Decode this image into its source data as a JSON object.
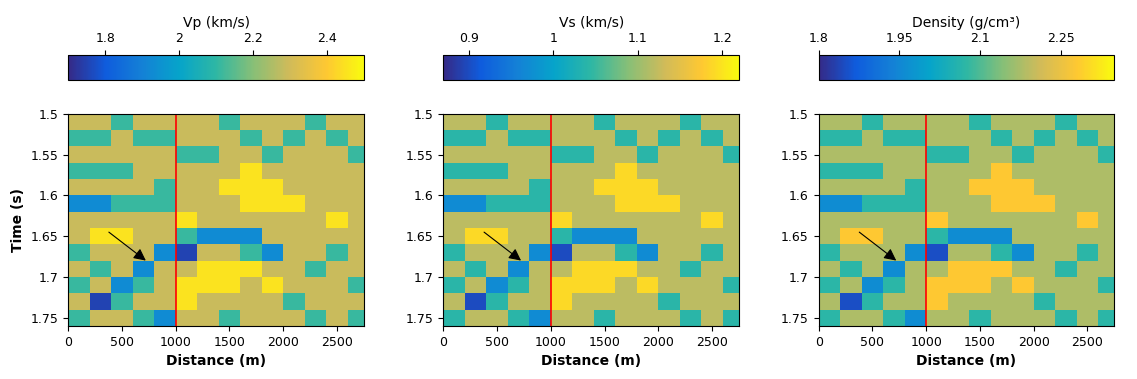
{
  "chart_data": [
    {
      "type": "heatmap",
      "colorbar_label": "Vp (km/s)",
      "xlabel": "Distance (m)",
      "ylabel": "Time (s)",
      "x": [
        100,
        300,
        500,
        700,
        900,
        1100,
        1300,
        1500,
        1700,
        1900,
        2100,
        2300,
        2500,
        2700
      ],
      "y": [
        1.51,
        1.53,
        1.55,
        1.57,
        1.59,
        1.61,
        1.63,
        1.65,
        1.67,
        1.69,
        1.71,
        1.73,
        1.75
      ],
      "xlim": [
        0,
        2750
      ],
      "xticks": [
        0,
        500,
        1000,
        1500,
        2000,
        2500
      ],
      "ylim": [
        1.5,
        1.76
      ],
      "yticks": [
        1.5,
        1.55,
        1.6,
        1.65,
        1.7,
        1.75
      ],
      "well_x": 1000,
      "clim": [
        1.7,
        2.5
      ],
      "cticks": [
        1.8,
        2,
        2.2,
        2.4
      ],
      "cells": [
        [
          2.29,
          2.29,
          2.11,
          2.29,
          2.29,
          2.29,
          2.29,
          2.11,
          2.29,
          2.29,
          2.29,
          2.11,
          2.29,
          2.29
        ],
        [
          2.11,
          2.11,
          2.29,
          2.11,
          2.11,
          2.29,
          2.29,
          2.29,
          2.11,
          2.29,
          2.11,
          2.29,
          2.11,
          2.29
        ],
        [
          2.29,
          2.29,
          2.29,
          2.29,
          2.29,
          2.11,
          2.11,
          2.29,
          2.29,
          2.11,
          2.29,
          2.29,
          2.29,
          2.11
        ],
        [
          2.11,
          2.11,
          2.11,
          2.29,
          2.29,
          2.29,
          2.29,
          2.29,
          2.45,
          2.29,
          2.29,
          2.29,
          2.29,
          2.29
        ],
        [
          2.29,
          2.29,
          2.29,
          2.29,
          2.11,
          2.29,
          2.29,
          2.45,
          2.45,
          2.45,
          2.29,
          2.29,
          2.29,
          2.29
        ],
        [
          1.93,
          1.93,
          2.11,
          2.11,
          2.11,
          2.29,
          2.29,
          2.29,
          2.45,
          2.45,
          2.45,
          2.29,
          2.29,
          2.29
        ],
        [
          2.29,
          2.29,
          2.29,
          2.29,
          2.29,
          2.45,
          2.29,
          2.29,
          2.29,
          2.29,
          2.29,
          2.29,
          2.45,
          2.29
        ],
        [
          2.29,
          2.45,
          2.45,
          2.29,
          2.29,
          2.11,
          1.93,
          1.93,
          1.93,
          2.29,
          2.29,
          2.29,
          2.29,
          2.29
        ],
        [
          2.11,
          2.29,
          2.29,
          2.29,
          1.93,
          1.75,
          2.29,
          2.29,
          2.11,
          1.93,
          2.29,
          2.29,
          2.11,
          2.29
        ],
        [
          2.29,
          2.11,
          2.29,
          1.93,
          2.29,
          2.29,
          2.45,
          2.45,
          2.45,
          2.29,
          2.29,
          2.11,
          2.29,
          2.29
        ],
        [
          2.11,
          2.29,
          1.93,
          2.11,
          2.29,
          2.45,
          2.45,
          2.45,
          2.29,
          2.45,
          2.29,
          2.29,
          2.29,
          2.11
        ],
        [
          2.29,
          1.75,
          2.11,
          2.29,
          2.29,
          2.45,
          2.29,
          2.29,
          2.29,
          2.29,
          2.11,
          2.29,
          2.29,
          2.29
        ],
        [
          2.11,
          2.29,
          2.29,
          2.11,
          1.93,
          2.29,
          2.29,
          2.11,
          2.29,
          2.29,
          2.29,
          2.11,
          2.29,
          2.11
        ]
      ]
    },
    {
      "type": "heatmap",
      "colorbar_label": "Vs (km/s)",
      "xlabel": "Distance (m)",
      "x": [
        100,
        300,
        500,
        700,
        900,
        1100,
        1300,
        1500,
        1700,
        1900,
        2100,
        2300,
        2500,
        2700
      ],
      "y": [
        1.51,
        1.53,
        1.55,
        1.57,
        1.59,
        1.61,
        1.63,
        1.65,
        1.67,
        1.69,
        1.71,
        1.73,
        1.75
      ],
      "xlim": [
        0,
        2750
      ],
      "xticks": [
        0,
        500,
        1000,
        1500,
        2000,
        2500
      ],
      "ylim": [
        1.5,
        1.76
      ],
      "yticks": [
        1.5,
        1.55,
        1.6,
        1.65,
        1.7,
        1.75
      ],
      "well_x": 1000,
      "clim": [
        0.87,
        1.22
      ],
      "cticks": [
        0.9,
        1,
        1.1,
        1.2
      ],
      "cells": [
        [
          1.12,
          1.12,
          1.04,
          1.12,
          1.12,
          1.12,
          1.12,
          1.04,
          1.12,
          1.12,
          1.12,
          1.04,
          1.12,
          1.12
        ],
        [
          1.04,
          1.04,
          1.12,
          1.04,
          1.04,
          1.12,
          1.12,
          1.12,
          1.04,
          1.12,
          1.04,
          1.12,
          1.04,
          1.12
        ],
        [
          1.12,
          1.12,
          1.12,
          1.12,
          1.12,
          1.04,
          1.04,
          1.12,
          1.12,
          1.04,
          1.12,
          1.12,
          1.12,
          1.04
        ],
        [
          1.04,
          1.04,
          1.04,
          1.12,
          1.12,
          1.12,
          1.12,
          1.12,
          1.19,
          1.12,
          1.12,
          1.12,
          1.12,
          1.12
        ],
        [
          1.12,
          1.12,
          1.12,
          1.12,
          1.04,
          1.12,
          1.12,
          1.19,
          1.19,
          1.19,
          1.12,
          1.12,
          1.12,
          1.12
        ],
        [
          0.97,
          0.97,
          1.04,
          1.04,
          1.04,
          1.12,
          1.12,
          1.12,
          1.19,
          1.19,
          1.19,
          1.12,
          1.12,
          1.12
        ],
        [
          1.12,
          1.12,
          1.12,
          1.12,
          1.12,
          1.19,
          1.12,
          1.12,
          1.12,
          1.12,
          1.12,
          1.12,
          1.19,
          1.12
        ],
        [
          1.12,
          1.19,
          1.19,
          1.12,
          1.12,
          1.04,
          0.97,
          0.97,
          0.97,
          1.12,
          1.12,
          1.12,
          1.12,
          1.12
        ],
        [
          1.04,
          1.12,
          1.12,
          1.12,
          0.97,
          0.9,
          1.12,
          1.12,
          1.04,
          0.97,
          1.12,
          1.12,
          1.04,
          1.12
        ],
        [
          1.12,
          1.04,
          1.12,
          0.97,
          1.12,
          1.12,
          1.19,
          1.19,
          1.19,
          1.12,
          1.12,
          1.04,
          1.12,
          1.12
        ],
        [
          1.04,
          1.12,
          0.97,
          1.04,
          1.12,
          1.19,
          1.19,
          1.19,
          1.12,
          1.19,
          1.12,
          1.12,
          1.12,
          1.04
        ],
        [
          1.12,
          0.9,
          1.04,
          1.12,
          1.12,
          1.19,
          1.12,
          1.12,
          1.12,
          1.12,
          1.04,
          1.12,
          1.12,
          1.12
        ],
        [
          1.04,
          1.12,
          1.12,
          1.04,
          0.97,
          1.12,
          1.12,
          1.04,
          1.12,
          1.12,
          1.12,
          1.04,
          1.12,
          1.04
        ]
      ]
    },
    {
      "type": "heatmap",
      "colorbar_label": "Density (g/cm³)",
      "xlabel": "Distance (m)",
      "x": [
        100,
        300,
        500,
        700,
        900,
        1100,
        1300,
        1500,
        1700,
        1900,
        2100,
        2300,
        2500,
        2700
      ],
      "y": [
        1.51,
        1.53,
        1.55,
        1.57,
        1.59,
        1.61,
        1.63,
        1.65,
        1.67,
        1.69,
        1.71,
        1.73,
        1.75
      ],
      "xlim": [
        0,
        2750
      ],
      "xticks": [
        0,
        500,
        1000,
        1500,
        2000,
        2500
      ],
      "ylim": [
        1.5,
        1.76
      ],
      "yticks": [
        1.5,
        1.55,
        1.6,
        1.65,
        1.7,
        1.75
      ],
      "well_x": 1000,
      "clim": [
        1.8,
        2.35
      ],
      "cticks": [
        1.8,
        1.95,
        2.1,
        2.25
      ],
      "cells": [
        [
          2.18,
          2.18,
          2.07,
          2.18,
          2.18,
          2.18,
          2.18,
          2.07,
          2.18,
          2.18,
          2.18,
          2.07,
          2.18,
          2.18
        ],
        [
          2.07,
          2.07,
          2.18,
          2.07,
          2.07,
          2.18,
          2.18,
          2.18,
          2.07,
          2.18,
          2.07,
          2.18,
          2.07,
          2.18
        ],
        [
          2.18,
          2.18,
          2.18,
          2.18,
          2.18,
          2.07,
          2.07,
          2.18,
          2.18,
          2.07,
          2.18,
          2.18,
          2.18,
          2.07
        ],
        [
          2.07,
          2.07,
          2.07,
          2.18,
          2.18,
          2.18,
          2.18,
          2.18,
          2.28,
          2.18,
          2.18,
          2.18,
          2.18,
          2.18
        ],
        [
          2.18,
          2.18,
          2.18,
          2.18,
          2.07,
          2.18,
          2.18,
          2.28,
          2.28,
          2.28,
          2.18,
          2.18,
          2.18,
          2.18
        ],
        [
          1.96,
          1.96,
          2.07,
          2.07,
          2.07,
          2.18,
          2.18,
          2.18,
          2.28,
          2.28,
          2.28,
          2.18,
          2.18,
          2.18
        ],
        [
          2.18,
          2.18,
          2.18,
          2.18,
          2.18,
          2.28,
          2.18,
          2.18,
          2.18,
          2.18,
          2.18,
          2.18,
          2.28,
          2.18
        ],
        [
          2.18,
          2.28,
          2.28,
          2.18,
          2.18,
          2.07,
          1.96,
          1.96,
          1.96,
          2.18,
          2.18,
          2.18,
          2.18,
          2.18
        ],
        [
          2.07,
          2.18,
          2.18,
          2.18,
          1.96,
          1.85,
          2.18,
          2.18,
          2.07,
          1.96,
          2.18,
          2.18,
          2.07,
          2.18
        ],
        [
          2.18,
          2.07,
          2.18,
          1.96,
          2.18,
          2.18,
          2.28,
          2.28,
          2.28,
          2.18,
          2.18,
          2.07,
          2.18,
          2.18
        ],
        [
          2.07,
          2.18,
          1.96,
          2.07,
          2.18,
          2.28,
          2.28,
          2.28,
          2.18,
          2.28,
          2.18,
          2.18,
          2.18,
          2.07
        ],
        [
          2.18,
          1.85,
          2.07,
          2.18,
          2.18,
          2.28,
          2.18,
          2.18,
          2.18,
          2.18,
          2.07,
          2.18,
          2.18,
          2.18
        ],
        [
          2.07,
          2.18,
          2.18,
          2.07,
          1.96,
          2.18,
          2.18,
          2.07,
          2.18,
          2.18,
          2.18,
          2.07,
          2.18,
          2.07
        ]
      ]
    }
  ]
}
